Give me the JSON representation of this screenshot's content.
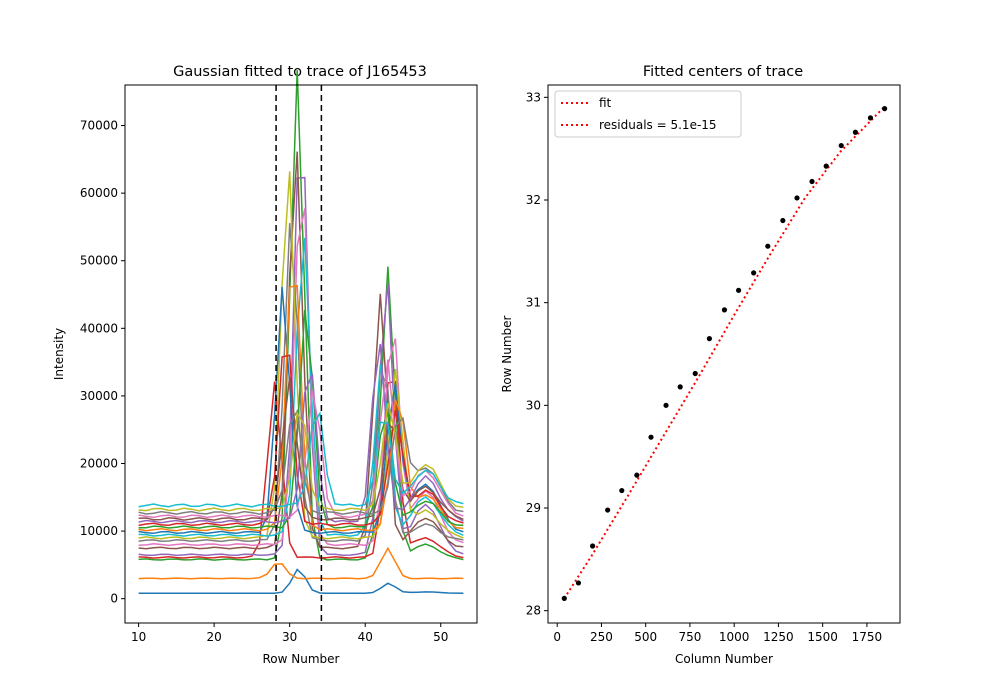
{
  "chart_data": [
    {
      "type": "line",
      "title": "Gaussian fitted to trace of J165453",
      "xlabel": "Row Number",
      "ylabel": "Intensity",
      "xlim": [
        8.2,
        54.8
      ],
      "ylim": [
        -3600,
        76000
      ],
      "xticks": [
        10,
        20,
        30,
        40,
        50
      ],
      "yticks": [
        0,
        10000,
        20000,
        30000,
        40000,
        50000,
        60000,
        70000
      ],
      "vlines": [
        28.2,
        34.2
      ],
      "vline_color": "#000000",
      "series_colors": [
        "#1f77b4",
        "#ff7f0e",
        "#2ca02c",
        "#d62728",
        "#9467bd",
        "#8c564b",
        "#e377c2",
        "#7f7f7f",
        "#bcbd22",
        "#17becf"
      ],
      "profile": {
        "x_range": [
          10,
          53
        ],
        "primary_peak_x": 31,
        "secondary_peak_x": 43,
        "bump_x": 48
      },
      "series": [
        {
          "baseline": 800,
          "peak": 3600,
          "peak_x": 31.2,
          "secondary": 1500,
          "sec_x": 43.1,
          "bump": 1000
        },
        {
          "baseline": 3000,
          "peak": 2500,
          "peak_x": 28.5,
          "secondary": 4500,
          "sec_x": 43.0,
          "bump": 3000
        },
        {
          "baseline": 5800,
          "peak": 72500,
          "peak_x": 31.0,
          "secondary": 43300,
          "sec_x": 43.0,
          "bump": 8000
        },
        {
          "baseline": 6100,
          "peak": 26000,
          "peak_x": 28.0,
          "secondary": 30000,
          "sec_x": 43.5,
          "bump": 9000
        },
        {
          "baseline": 6500,
          "peak": 65000,
          "peak_x": 31.5,
          "secondary": 41000,
          "sec_x": 42.8,
          "bump": 14000
        },
        {
          "baseline": 7500,
          "peak": 60000,
          "peak_x": 30.8,
          "secondary": 37500,
          "sec_x": 42.0,
          "bump": 12000
        },
        {
          "baseline": 8000,
          "peak": 55000,
          "peak_x": 31.6,
          "secondary": 33000,
          "sec_x": 43.6,
          "bump": 16000
        },
        {
          "baseline": 8600,
          "peak": 48000,
          "peak_x": 30.2,
          "secondary": 28000,
          "sec_x": 42.4,
          "bump": 11000
        },
        {
          "baseline": 9000,
          "peak": 55500,
          "peak_x": 29.8,
          "secondary": 24500,
          "sec_x": 44.0,
          "bump": 13000
        },
        {
          "baseline": 9400,
          "peak": 45000,
          "peak_x": 31.8,
          "secondary": 26000,
          "sec_x": 42.2,
          "bump": 15000
        },
        {
          "baseline": 9800,
          "peak": 36500,
          "peak_x": 29.1,
          "secondary": 22000,
          "sec_x": 43.8,
          "bump": 17000
        },
        {
          "baseline": 10200,
          "peak": 42000,
          "peak_x": 30.5,
          "secondary": 20000,
          "sec_x": 44.3,
          "bump": 15500
        },
        {
          "baseline": 10600,
          "peak": 33000,
          "peak_x": 32.2,
          "secondary": 18000,
          "sec_x": 42.7,
          "bump": 14500
        },
        {
          "baseline": 11000,
          "peak": 29000,
          "peak_x": 29.5,
          "secondary": 16500,
          "sec_x": 44.0,
          "bump": 16000
        },
        {
          "baseline": 11400,
          "peak": 24000,
          "peak_x": 32.6,
          "secondary": 27000,
          "sec_x": 41.8,
          "bump": 18000
        },
        {
          "baseline": 11800,
          "peak": 21000,
          "peak_x": 30.0,
          "secondary": 15500,
          "sec_x": 43.4,
          "bump": 16500
        },
        {
          "baseline": 12200,
          "peak": 19000,
          "peak_x": 33.2,
          "secondary": 23000,
          "sec_x": 42.9,
          "bump": 19000
        },
        {
          "baseline": 12700,
          "peak": 16500,
          "peak_x": 30.6,
          "secondary": 14500,
          "sec_x": 44.5,
          "bump": 19500
        },
        {
          "baseline": 13200,
          "peak": 15500,
          "peak_x": 31.4,
          "secondary": 16000,
          "sec_x": 43.2,
          "bump": 20000
        },
        {
          "baseline": 13800,
          "peak": 14800,
          "peak_x": 33.6,
          "secondary": 14200,
          "sec_x": 42.5,
          "bump": 19000
        }
      ]
    },
    {
      "type": "scatter",
      "title": "Fitted centers of trace",
      "xlabel": "Column Number",
      "ylabel": "Row Number",
      "xlim": [
        -52,
        1937
      ],
      "ylim": [
        27.88,
        33.12
      ],
      "xticks": [
        0,
        250,
        500,
        750,
        1000,
        1250,
        1500,
        1750
      ],
      "yticks": [
        28,
        29,
        30,
        31,
        32,
        33
      ],
      "point_color": "#000000",
      "fit_color": "#ff0000",
      "points": {
        "x": [
          40,
          120,
          200,
          285,
          365,
          450,
          530,
          615,
          695,
          780,
          860,
          945,
          1025,
          1110,
          1190,
          1275,
          1355,
          1440,
          1520,
          1605,
          1685,
          1770,
          1850
        ],
        "y": [
          28.12,
          28.27,
          28.63,
          28.98,
          29.17,
          29.32,
          29.69,
          30.0,
          30.18,
          30.31,
          30.65,
          30.93,
          31.12,
          31.29,
          31.55,
          31.8,
          32.02,
          32.18,
          32.33,
          32.53,
          32.66,
          32.8,
          32.89
        ]
      },
      "fit": {
        "x": [
          40,
          200,
          400,
          600,
          800,
          1000,
          1200,
          1400,
          1600,
          1850
        ],
        "y": [
          28.12,
          28.55,
          29.12,
          29.7,
          30.28,
          30.88,
          31.46,
          32.02,
          32.47,
          32.91
        ]
      },
      "legend": {
        "placement": "upper left",
        "entries": [
          "fit",
          "residuals = 5.1e-15"
        ]
      }
    }
  ]
}
